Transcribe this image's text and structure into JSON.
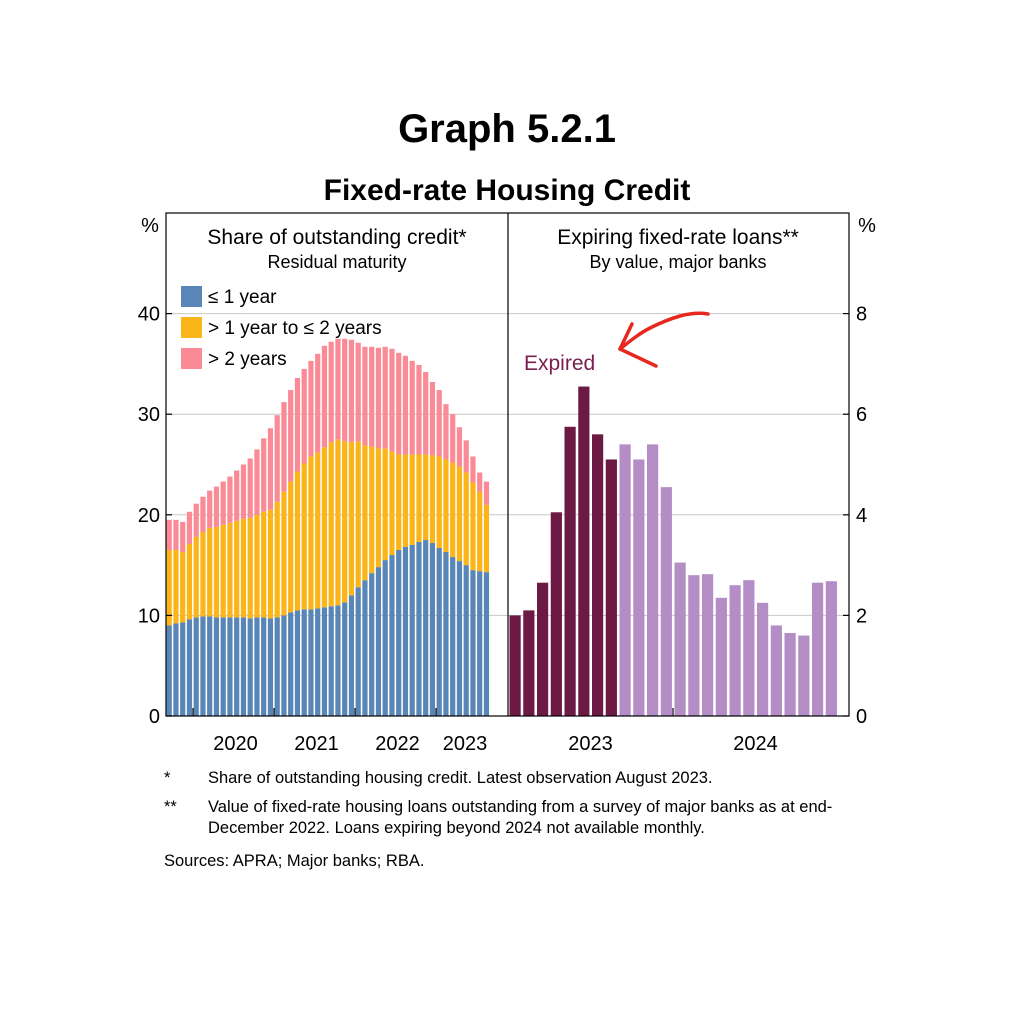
{
  "title": "Graph 5.2.1",
  "subtitle": "Fixed-rate Housing Credit",
  "colors": {
    "le1": "#5886b6",
    "y1to2": "#fcb518",
    "gt2": "#fa8a96",
    "expired": "#6c1a44",
    "future": "#b48dc6",
    "annotation_text": "#7a2050",
    "arrow": "#e8281e",
    "grid": "#c8c8c8"
  },
  "axes": {
    "left_unit": "%",
    "right_unit": "%",
    "left_ticks": [
      "0",
      "10",
      "20",
      "30",
      "40"
    ],
    "right_ticks": [
      "0",
      "2",
      "4",
      "6",
      "8"
    ]
  },
  "annotation": {
    "text": "Expired",
    "icon": "hand-drawn-arrow-icon"
  },
  "notes": [
    {
      "mark": "*",
      "text": "Share of outstanding housing credit. Latest observation August 2023."
    },
    {
      "mark": "**",
      "text": "Value of fixed-rate housing loans outstanding from a survey of major banks as at end-December 2022. Loans expiring beyond 2024 not available monthly."
    }
  ],
  "sources": "Sources: APRA; Major banks; RBA.",
  "chart_data": [
    {
      "type": "bar",
      "stacked": true,
      "title": "Share of outstanding credit*",
      "subtitle": "Residual maturity",
      "ylabel": "%",
      "ylim": [
        0,
        50
      ],
      "x_tick_labels": [
        "2020",
        "2021",
        "2022",
        "2023"
      ],
      "legend_placement": "top-left",
      "categories": [
        "2019-09",
        "2019-10",
        "2019-11",
        "2019-12",
        "2020-01",
        "2020-02",
        "2020-03",
        "2020-04",
        "2020-05",
        "2020-06",
        "2020-07",
        "2020-08",
        "2020-09",
        "2020-10",
        "2020-11",
        "2020-12",
        "2021-01",
        "2021-02",
        "2021-03",
        "2021-04",
        "2021-05",
        "2021-06",
        "2021-07",
        "2021-08",
        "2021-09",
        "2021-10",
        "2021-11",
        "2021-12",
        "2022-01",
        "2022-02",
        "2022-03",
        "2022-04",
        "2022-05",
        "2022-06",
        "2022-07",
        "2022-08",
        "2022-09",
        "2022-10",
        "2022-11",
        "2022-12",
        "2023-01",
        "2023-02",
        "2023-03",
        "2023-04",
        "2023-05",
        "2023-06",
        "2023-07",
        "2023-08"
      ],
      "series": [
        {
          "name": "≤ 1 year",
          "values": [
            9,
            9.2,
            9.3,
            9.6,
            9.8,
            9.9,
            9.9,
            9.8,
            9.8,
            9.8,
            9.8,
            9.8,
            9.7,
            9.8,
            9.8,
            9.7,
            9.8,
            10,
            10.3,
            10.5,
            10.6,
            10.6,
            10.7,
            10.8,
            10.9,
            11,
            11.3,
            12,
            12.8,
            13.5,
            14.2,
            14.8,
            15.5,
            16,
            16.5,
            16.8,
            17,
            17.3,
            17.5,
            17.2,
            16.7,
            16.3,
            15.8,
            15.4,
            15,
            14.5,
            14.4,
            14.3
          ]
        },
        {
          "name": "> 1 year to ≤ 2 years",
          "values": [
            7.5,
            7.3,
            7,
            7.5,
            8,
            8.4,
            8.8,
            9,
            9.2,
            9.4,
            9.6,
            9.8,
            10,
            10.2,
            10.5,
            10.8,
            11.5,
            12.3,
            13,
            13.8,
            14.5,
            15.2,
            15.5,
            15.9,
            16.3,
            16.5,
            16,
            15.2,
            14.5,
            13.4,
            12.6,
            11.8,
            11.1,
            10.3,
            9.5,
            9.2,
            9,
            8.7,
            8.5,
            8.7,
            9.1,
            9.2,
            9.4,
            9.4,
            9.2,
            8.7,
            7.9,
            6.7
          ]
        },
        {
          "name": "> 2 years",
          "values": [
            3,
            3,
            3,
            3.2,
            3.3,
            3.5,
            3.7,
            4,
            4.3,
            4.6,
            5,
            5.4,
            5.9,
            6.5,
            7.3,
            8.1,
            8.6,
            8.9,
            9.1,
            9.3,
            9.4,
            9.5,
            9.8,
            10.1,
            10,
            10,
            10.2,
            10.2,
            9.8,
            9.8,
            9.9,
            10,
            10.1,
            10.2,
            10.1,
            9.8,
            9.3,
            8.9,
            8.2,
            7.3,
            6.6,
            5.5,
            4.8,
            3.9,
            3.2,
            2.6,
            1.9,
            2.3
          ]
        }
      ]
    },
    {
      "type": "bar",
      "title": "Expiring fixed-rate loans**",
      "subtitle": "By value, major banks",
      "ylabel": "%",
      "ylim": [
        0,
        10
      ],
      "x_tick_labels": [
        "2023",
        "2024"
      ],
      "categories": [
        "2023-01",
        "2023-02",
        "2023-03",
        "2023-04",
        "2023-05",
        "2023-06",
        "2023-07",
        "2023-08",
        "2023-09",
        "2023-10",
        "2023-11",
        "2023-12",
        "2024-01",
        "2024-02",
        "2024-03",
        "2024-04",
        "2024-05",
        "2024-06",
        "2024-07",
        "2024-08",
        "2024-09",
        "2024-10",
        "2024-11",
        "2024-12"
      ],
      "series": [
        {
          "name": "Expired",
          "values": [
            2.0,
            2.1,
            2.65,
            4.05,
            5.75,
            6.55,
            5.6,
            5.1,
            null,
            null,
            null,
            null,
            null,
            null,
            null,
            null,
            null,
            null,
            null,
            null,
            null,
            null,
            null,
            null
          ]
        },
        {
          "name": "Expiring",
          "values": [
            null,
            null,
            null,
            null,
            null,
            null,
            null,
            null,
            5.4,
            5.1,
            5.4,
            4.55,
            3.05,
            2.8,
            2.82,
            2.35,
            2.6,
            2.7,
            2.25,
            1.8,
            1.65,
            1.6,
            2.65,
            2.68
          ]
        }
      ]
    }
  ]
}
